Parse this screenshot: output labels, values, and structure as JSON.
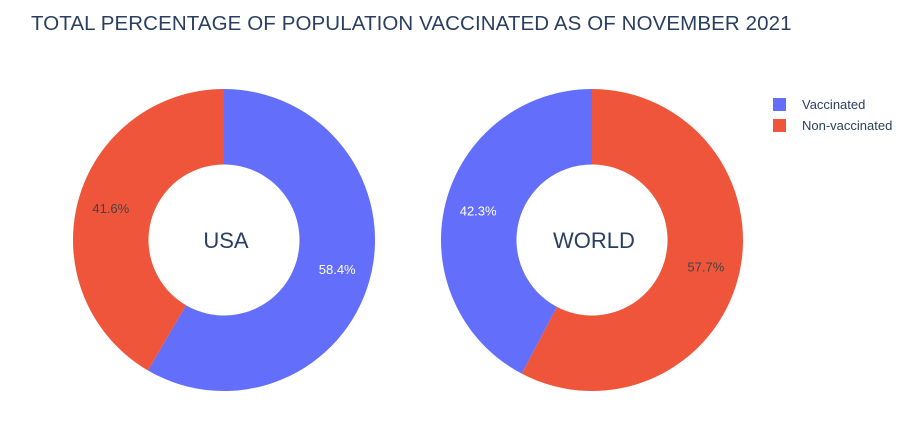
{
  "chart_data": {
    "type": "pie",
    "title": "TOTAL PERCENTAGE OF POPULATION VACCINATED AS OF NOVEMBER 2021",
    "legend_position": "top-right",
    "legend": [
      {
        "label": "Vaccinated",
        "color": "#636efa"
      },
      {
        "label": "Non-vaccinated",
        "color": "#ef553b"
      }
    ],
    "charts": [
      {
        "name": "USA",
        "hole": 0.5,
        "slices": [
          {
            "label": "Vaccinated",
            "value": 58.4,
            "text": "58.4%",
            "color": "#636efa",
            "text_color": "#ffffff"
          },
          {
            "label": "Non-vaccinated",
            "value": 41.6,
            "text": "41.6%",
            "color": "#ef553b",
            "text_color": "#444444"
          }
        ]
      },
      {
        "name": "WORLD",
        "hole": 0.5,
        "slices": [
          {
            "label": "Non-vaccinated",
            "value": 57.7,
            "text": "57.7%",
            "color": "#ef553b",
            "text_color": "#444444"
          },
          {
            "label": "Vaccinated",
            "value": 42.3,
            "text": "42.3%",
            "color": "#636efa",
            "text_color": "#ffffff"
          }
        ]
      }
    ]
  }
}
